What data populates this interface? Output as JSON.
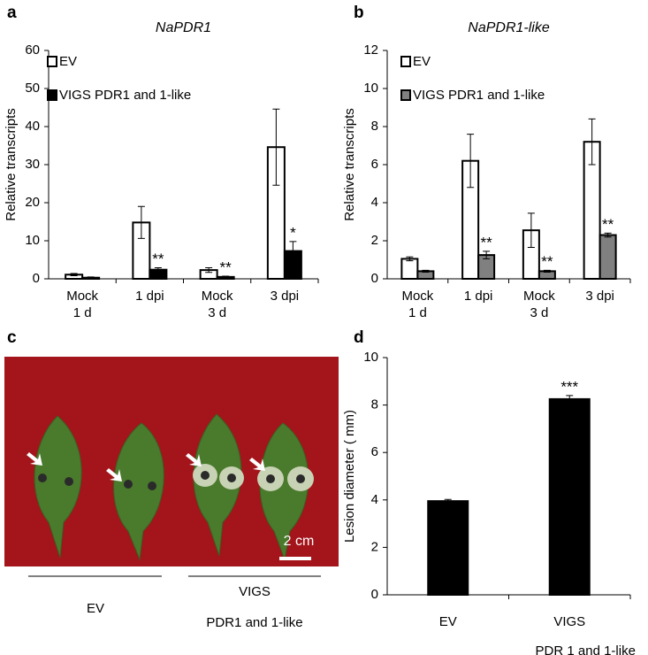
{
  "chart_data": [
    {
      "type": "bar",
      "panel": "a",
      "title": "NaPDR1",
      "y_label": "Relative transcripts",
      "categories": [
        "Mock\n1 d",
        "1 dpi",
        "Mock\n3 d",
        "3 dpi"
      ],
      "series": [
        {
          "name": "EV",
          "color": "#ffffff",
          "values": [
            1.1,
            14.8,
            2.3,
            34.6
          ],
          "errors": [
            0.3,
            4.2,
            0.6,
            10.0
          ],
          "significance": [
            null,
            null,
            null,
            null
          ]
        },
        {
          "name": "VIGS PDR1 and 1-like",
          "color": "#000000",
          "values": [
            0.3,
            2.4,
            0.5,
            7.3
          ],
          "errors": [
            0.2,
            0.5,
            0.2,
            2.5
          ],
          "significance": [
            null,
            "**",
            "**",
            "*"
          ]
        }
      ],
      "ylim": [
        0,
        60
      ],
      "yticks": [
        0,
        10,
        20,
        30,
        40,
        50,
        60
      ],
      "legend": "top-left"
    },
    {
      "type": "bar",
      "panel": "b",
      "title": "NaPDR1-like",
      "y_label": "Relative transcripts",
      "categories": [
        "Mock\n1 d",
        "1 dpi",
        "Mock\n3 d",
        "3 dpi"
      ],
      "series": [
        {
          "name": "EV",
          "color": "#ffffff",
          "values": [
            1.05,
            6.2,
            2.55,
            7.2
          ],
          "errors": [
            0.1,
            1.4,
            0.9,
            1.2
          ],
          "significance": [
            null,
            null,
            null,
            null
          ]
        },
        {
          "name": "VIGS PDR1 and 1-like",
          "color": "#808080",
          "values": [
            0.4,
            1.25,
            0.4,
            2.3
          ],
          "errors": [
            0.05,
            0.2,
            0.05,
            0.1
          ],
          "significance": [
            null,
            "**",
            "**",
            "**"
          ]
        }
      ],
      "ylim": [
        0,
        12
      ],
      "yticks": [
        0,
        2,
        4,
        6,
        8,
        10,
        12
      ],
      "legend": "top-left"
    },
    {
      "type": "bar",
      "panel": "d",
      "y_label": "Lesion diameter ( mm)",
      "categories": [
        "EV",
        "VIGS\nPDR 1 and 1-like"
      ],
      "series": [
        {
          "color": "#000000",
          "values": [
            3.95,
            8.25
          ],
          "errors": [
            0.07,
            0.15
          ],
          "significance": [
            null,
            "***"
          ]
        }
      ],
      "ylim": [
        0,
        10
      ],
      "yticks": [
        0,
        2,
        4,
        6,
        8,
        10
      ]
    }
  ],
  "photo": {
    "panel": "c",
    "scale_bar": "2 cm",
    "groups": [
      "EV",
      "VIGS"
    ],
    "group_note": "PDR1 and 1-like"
  }
}
